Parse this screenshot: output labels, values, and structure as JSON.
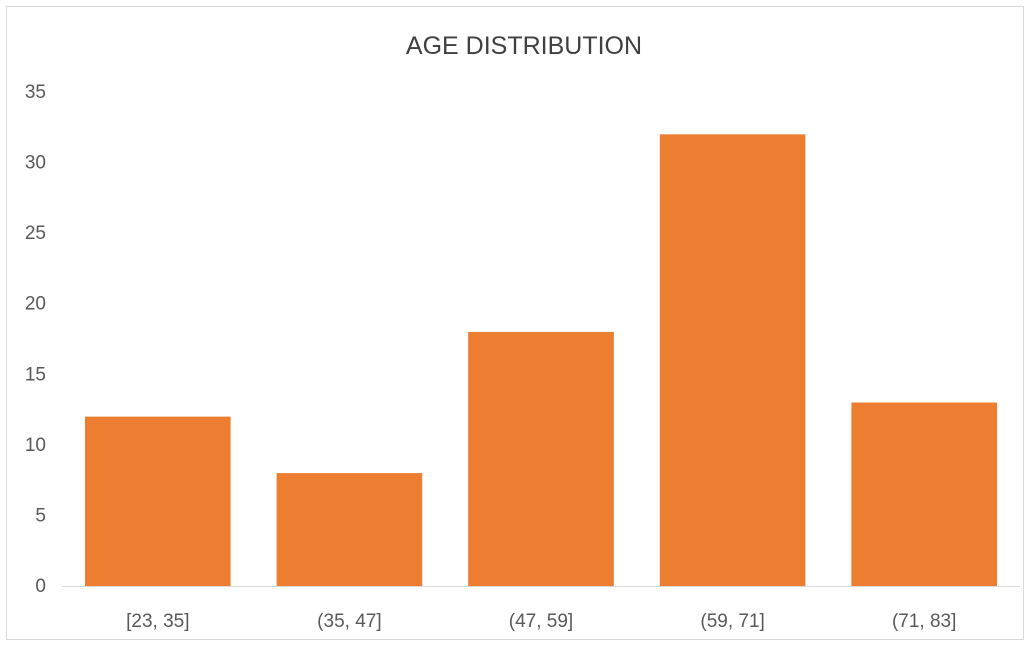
{
  "chart_data": {
    "type": "bar",
    "title": "AGE DISTRIBUTION",
    "xlabel": "",
    "ylabel": "",
    "categories": [
      "[23, 35]",
      "(35, 47]",
      "(47, 59]",
      "(59, 71]",
      "(71, 83]"
    ],
    "values": [
      12,
      8,
      18,
      32,
      13
    ],
    "ylim": [
      0,
      35
    ],
    "yticks": [
      0,
      5,
      10,
      15,
      20,
      25,
      30,
      35
    ],
    "grid": false,
    "legend": "none",
    "bar_color": "#ED7D31"
  }
}
